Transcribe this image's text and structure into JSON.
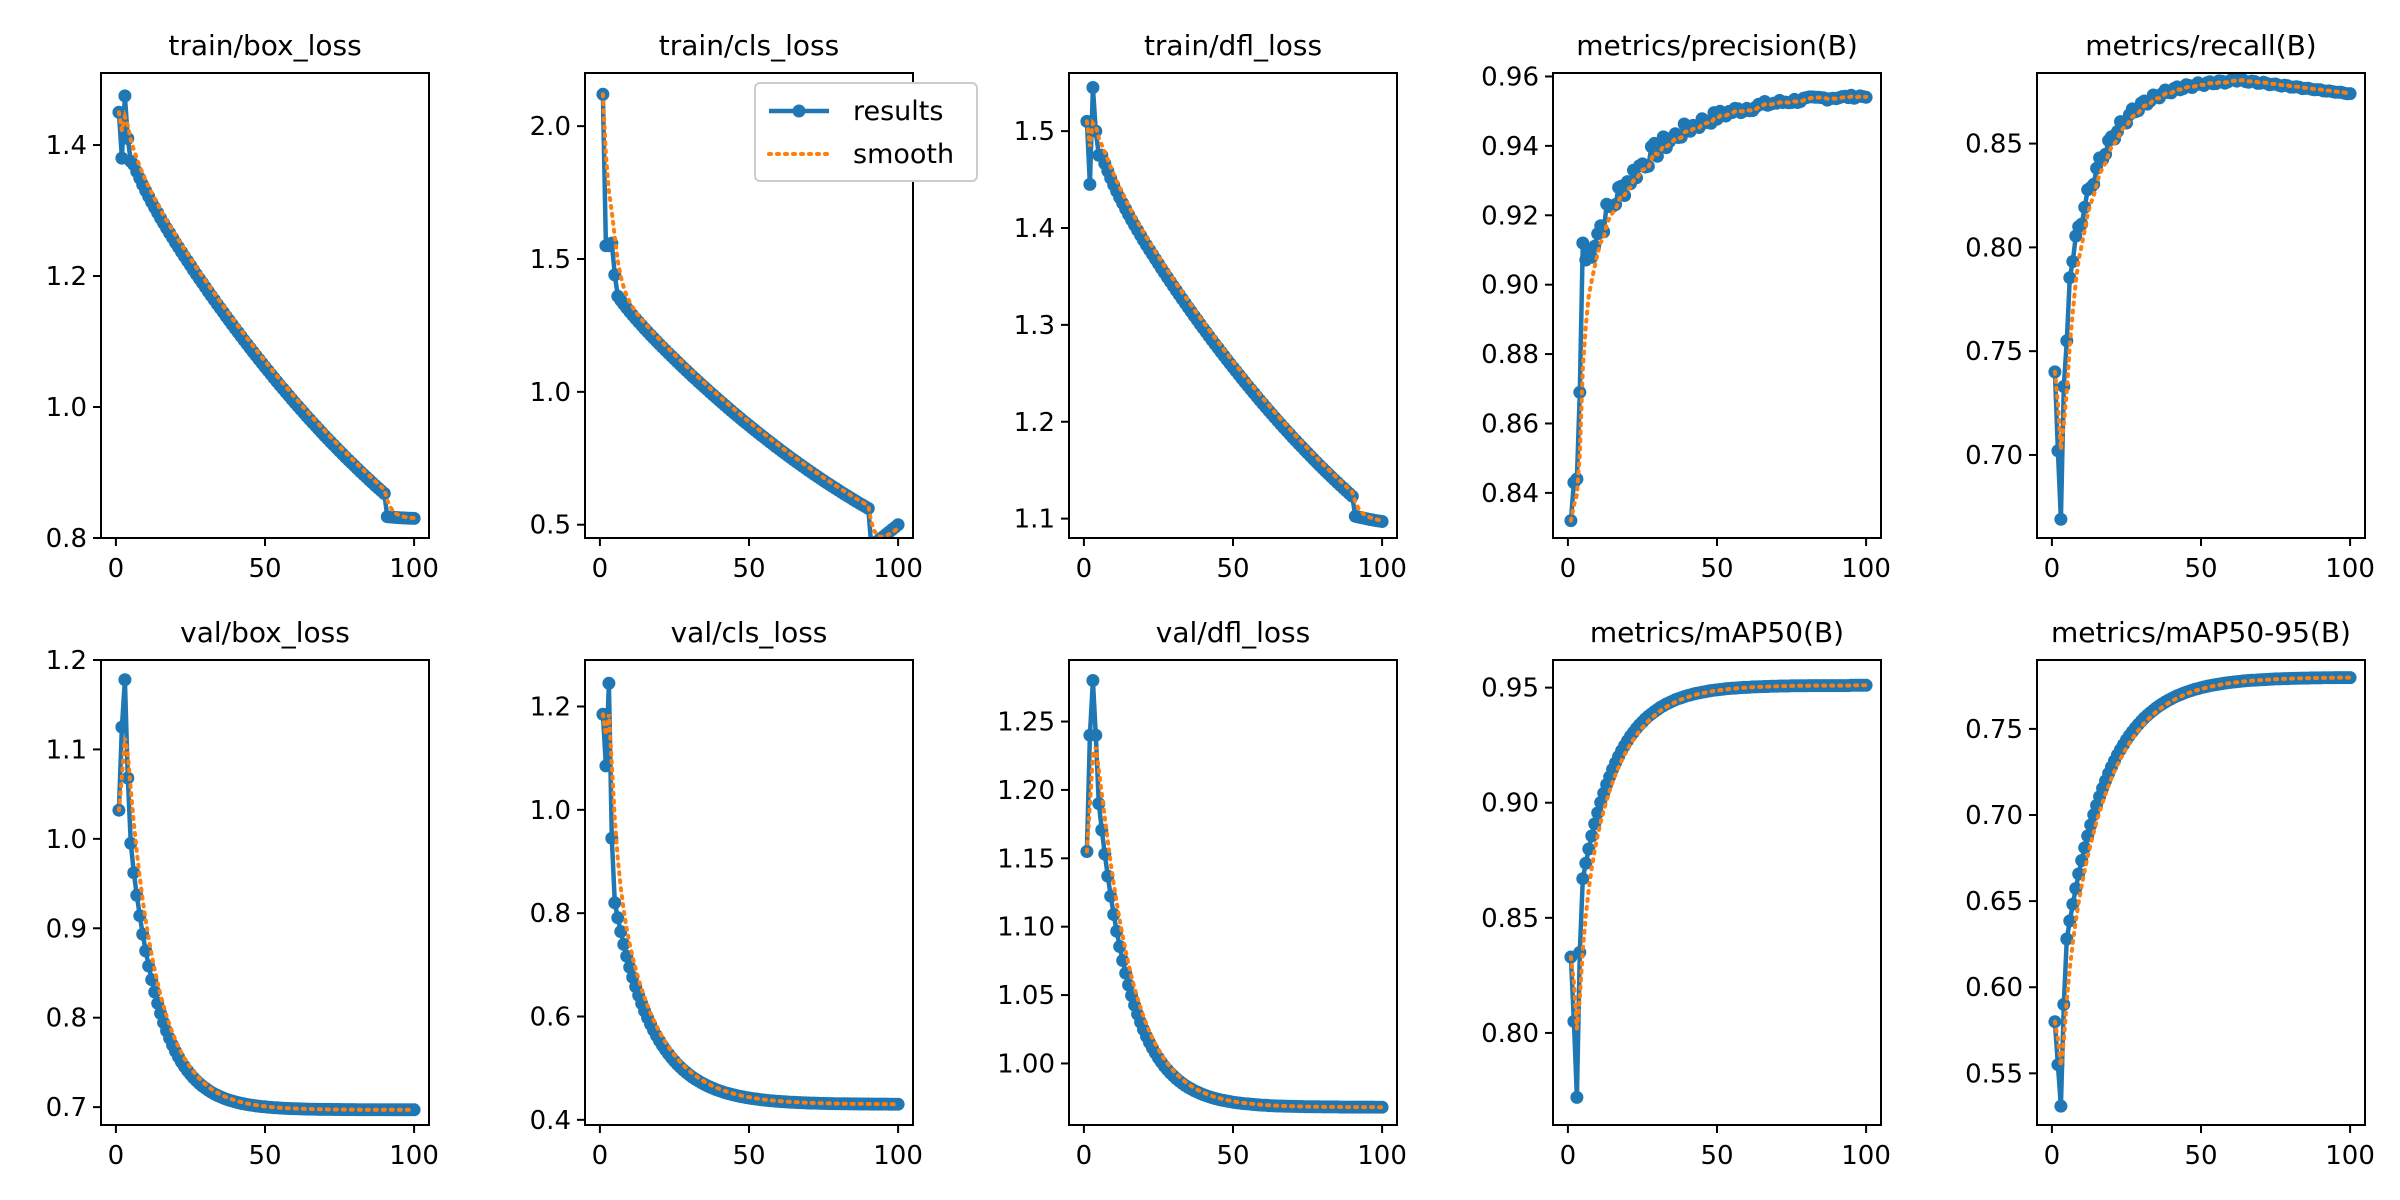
{
  "colors": {
    "results": "#1f77b4",
    "smooth": "#ff7f0e",
    "axes": "#000000",
    "background": "#ffffff"
  },
  "legend": {
    "results_label": "results",
    "smooth_label": "smooth",
    "placement": "upper-right of train/cls_loss"
  },
  "chart_data": [
    {
      "type": "line",
      "title": "train/box_loss",
      "xlim": [
        -5,
        105
      ],
      "ylim": [
        0.8,
        1.51
      ],
      "xticks": [
        0,
        50,
        100
      ],
      "xtick_labels": [
        "0",
        "50",
        "100"
      ],
      "yticks": [
        0.8,
        1.0,
        1.2,
        1.4
      ],
      "ytick_labels": [
        "0.8",
        "1.0",
        "1.2",
        "1.4"
      ],
      "shape": {
        "y0": [
          1.45,
          1.38,
          1.475,
          1.41,
          1.375
        ],
        "start": 1.35,
        "end": 0.83,
        "shift": {
          "x": 90,
          "dy": -0.035
        }
      },
      "series": [
        {
          "name": "results"
        },
        {
          "name": "smooth"
        }
      ]
    },
    {
      "type": "line",
      "title": "train/cls_loss",
      "xlim": [
        -5,
        105
      ],
      "ylim": [
        0.45,
        2.2
      ],
      "xticks": [
        0,
        50,
        100
      ],
      "xtick_labels": [
        "0",
        "50",
        "100"
      ],
      "yticks": [
        0.5,
        1.0,
        1.5,
        2.0
      ],
      "ytick_labels": [
        "0.5",
        "1.0",
        "1.5",
        "2.0"
      ],
      "shape": {
        "y0": [
          2.12,
          1.55,
          1.55,
          1.56,
          1.44
        ],
        "start": 1.34,
        "end": 0.5,
        "shift": {
          "x": 90,
          "dy": -0.15
        }
      },
      "legend": true,
      "series": [
        {
          "name": "results"
        },
        {
          "name": "smooth"
        }
      ]
    },
    {
      "type": "line",
      "title": "train/dfl_loss",
      "xlim": [
        -5,
        105
      ],
      "ylim": [
        1.08,
        1.56
      ],
      "xticks": [
        0,
        50,
        100
      ],
      "xtick_labels": [
        "0",
        "50",
        "100"
      ],
      "yticks": [
        1.1,
        1.2,
        1.3,
        1.4,
        1.5
      ],
      "ytick_labels": [
        "1.1",
        "1.2",
        "1.3",
        "1.4",
        "1.5"
      ],
      "shape": {
        "y0": [
          1.51,
          1.445,
          1.545,
          1.5,
          1.475
        ],
        "start": 1.455,
        "end": 1.097,
        "shift": {
          "x": 90,
          "dy": -0.02
        }
      },
      "series": [
        {
          "name": "results"
        },
        {
          "name": "smooth"
        }
      ]
    },
    {
      "type": "line",
      "title": "metrics/precision(B)",
      "xlim": [
        -5,
        105
      ],
      "ylim": [
        0.827,
        0.961
      ],
      "xticks": [
        0,
        50,
        100
      ],
      "xtick_labels": [
        "0",
        "50",
        "100"
      ],
      "yticks": [
        0.84,
        0.86,
        0.88,
        0.9,
        0.92,
        0.94,
        0.96
      ],
      "ytick_labels": [
        "0.84",
        "0.86",
        "0.88",
        "0.90",
        "0.92",
        "0.94",
        "0.96"
      ],
      "shape": {
        "y0": [
          0.832,
          0.843,
          0.844,
          0.869,
          0.912
        ],
        "start": 0.905,
        "end": 0.955,
        "noise": 0.006
      },
      "series": [
        {
          "name": "results"
        },
        {
          "name": "smooth"
        }
      ]
    },
    {
      "type": "line",
      "title": "metrics/recall(B)",
      "xlim": [
        -5,
        105
      ],
      "ylim": [
        0.66,
        0.884
      ],
      "xticks": [
        0,
        50,
        100
      ],
      "xtick_labels": [
        "0",
        "50",
        "100"
      ],
      "yticks": [
        0.7,
        0.75,
        0.8,
        0.85
      ],
      "ytick_labels": [
        "0.70",
        "0.75",
        "0.80",
        "0.85"
      ],
      "shape": {
        "y0": [
          0.74,
          0.702,
          0.669,
          0.733,
          0.755
        ],
        "start": 0.78,
        "end": 0.874,
        "peak": {
          "x": 60,
          "y": 0.881
        }
      },
      "series": [
        {
          "name": "results"
        },
        {
          "name": "smooth"
        }
      ]
    },
    {
      "type": "line",
      "title": "val/box_loss",
      "xlim": [
        -5,
        105
      ],
      "ylim": [
        0.68,
        1.2
      ],
      "xticks": [
        0,
        50,
        100
      ],
      "xtick_labels": [
        "0",
        "50",
        "100"
      ],
      "yticks": [
        0.7,
        0.8,
        0.9,
        1.0,
        1.1,
        1.2
      ],
      "ytick_labels": [
        "0.7",
        "0.8",
        "0.9",
        "1.0",
        "1.1",
        "1.2"
      ],
      "shape": {
        "y0": [
          1.032,
          1.125,
          1.178,
          1.068,
          0.995
        ],
        "start": 0.99,
        "end": 0.697,
        "rate": 10
      },
      "series": [
        {
          "name": "results"
        },
        {
          "name": "smooth"
        }
      ]
    },
    {
      "type": "line",
      "title": "val/cls_loss",
      "xlim": [
        -5,
        105
      ],
      "ylim": [
        0.39,
        1.29
      ],
      "xticks": [
        0,
        50,
        100
      ],
      "xtick_labels": [
        "0",
        "50",
        "100"
      ],
      "yticks": [
        0.4,
        0.6,
        0.8,
        1.0,
        1.2
      ],
      "ytick_labels": [
        "0.4",
        "0.6",
        "0.8",
        "1.0",
        "1.2"
      ],
      "shape": {
        "y0": [
          1.185,
          1.085,
          1.245,
          0.945,
          0.82
        ],
        "start": 0.82,
        "end": 0.43,
        "rate": 13
      },
      "series": [
        {
          "name": "results"
        },
        {
          "name": "smooth"
        }
      ]
    },
    {
      "type": "line",
      "title": "val/dfl_loss",
      "xlim": [
        -5,
        105
      ],
      "ylim": [
        0.955,
        1.295
      ],
      "xticks": [
        0,
        50,
        100
      ],
      "xtick_labels": [
        "0",
        "50",
        "100"
      ],
      "yticks": [
        1.0,
        1.05,
        1.1,
        1.15,
        1.2,
        1.25
      ],
      "ytick_labels": [
        "1.00",
        "1.05",
        "1.10",
        "1.15",
        "1.20",
        "1.25"
      ],
      "shape": {
        "y0": [
          1.155,
          1.24,
          1.28,
          1.24,
          1.19
        ],
        "start": 1.19,
        "end": 0.968,
        "rate": 11
      },
      "series": [
        {
          "name": "results"
        },
        {
          "name": "smooth"
        }
      ]
    },
    {
      "type": "line",
      "title": "metrics/mAP50(B)",
      "xlim": [
        -5,
        105
      ],
      "ylim": [
        0.76,
        0.962
      ],
      "xticks": [
        0,
        50,
        100
      ],
      "xtick_labels": [
        "0",
        "50",
        "100"
      ],
      "yticks": [
        0.8,
        0.85,
        0.9,
        0.95
      ],
      "ytick_labels": [
        "0.80",
        "0.85",
        "0.90",
        "0.95"
      ],
      "shape": {
        "y0": [
          0.833,
          0.805,
          0.772,
          0.835,
          0.867
        ],
        "start": 0.867,
        "end": 0.951,
        "rate": 12
      },
      "series": [
        {
          "name": "results"
        },
        {
          "name": "smooth"
        }
      ]
    },
    {
      "type": "line",
      "title": "metrics/mAP50-95(B)",
      "xlim": [
        -5,
        105
      ],
      "ylim": [
        0.52,
        0.79
      ],
      "xticks": [
        0,
        50,
        100
      ],
      "xtick_labels": [
        "0",
        "50",
        "100"
      ],
      "yticks": [
        0.55,
        0.6,
        0.65,
        0.7,
        0.75
      ],
      "ytick_labels": [
        "0.55",
        "0.60",
        "0.65",
        "0.70",
        "0.75"
      ],
      "shape": {
        "y0": [
          0.58,
          0.555,
          0.531,
          0.59,
          0.628
        ],
        "start": 0.628,
        "end": 0.78,
        "rate": 14
      },
      "series": [
        {
          "name": "results"
        },
        {
          "name": "smooth"
        }
      ]
    }
  ]
}
